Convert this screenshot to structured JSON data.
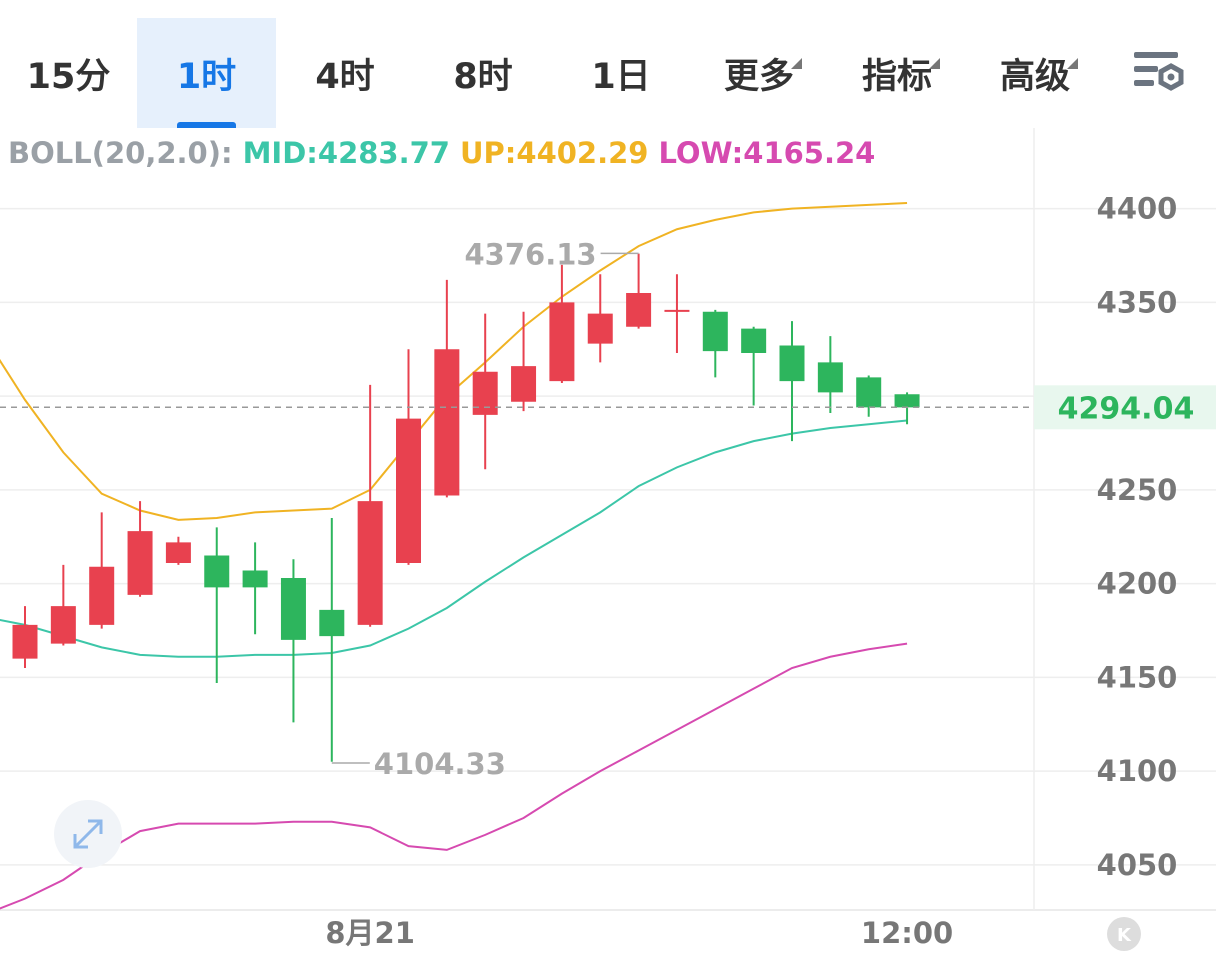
{
  "tabs": [
    {
      "label": "15分",
      "active": false,
      "dropdown": false
    },
    {
      "label": "1时",
      "active": true,
      "dropdown": false
    },
    {
      "label": "4时",
      "active": false,
      "dropdown": false
    },
    {
      "label": "8时",
      "active": false,
      "dropdown": false
    },
    {
      "label": "1日",
      "active": false,
      "dropdown": false
    },
    {
      "label": "更多",
      "active": false,
      "dropdown": true
    },
    {
      "label": "指标",
      "active": false,
      "dropdown": true
    },
    {
      "label": "高级",
      "active": false,
      "dropdown": true
    }
  ],
  "settings_icon": "chart-settings-icon",
  "indicator": {
    "name": "BOLL(20,2.0):",
    "mid": "MID:4283.77",
    "up": "UP:4402.29",
    "low": "LOW:4165.24"
  },
  "colors": {
    "up_candle": "#e8414f",
    "down_candle": "#2db55d",
    "mid_line": "#3cc6a8",
    "up_line": "#f0b323",
    "low_line": "#d64ab0",
    "accent": "#1677e6",
    "axis_text": "#777777"
  },
  "expand_icon": "expand-arrows-icon",
  "chart_data": {
    "type": "candlestick",
    "ylim": [
      4027,
      4443
    ],
    "y_ticks": [
      4050,
      4100,
      4150,
      4200,
      4250,
      4300,
      4350,
      4400
    ],
    "y_tick_labels": [
      "4050",
      "4100",
      "4150",
      "4200",
      "4250",
      "",
      "4350",
      "4400"
    ],
    "x_labels": [
      {
        "index": 9,
        "text": "8月21"
      },
      {
        "index": 23,
        "text": "12:00"
      }
    ],
    "current_price": "4294.04",
    "max_label": "4376.13",
    "min_label": "4104.33",
    "max_index": 16,
    "min_index": 8,
    "candles": [
      {
        "o": 4160,
        "h": 4188,
        "c": 4178,
        "l": 4155
      },
      {
        "o": 4168,
        "h": 4210,
        "c": 4188,
        "l": 4167
      },
      {
        "o": 4178,
        "h": 4238,
        "c": 4209,
        "l": 4176
      },
      {
        "o": 4194,
        "h": 4244,
        "c": 4228,
        "l": 4193
      },
      {
        "o": 4211,
        "h": 4225,
        "c": 4222,
        "l": 4210
      },
      {
        "o": 4215,
        "h": 4230,
        "c": 4198,
        "l": 4147
      },
      {
        "o": 4207,
        "h": 4222,
        "c": 4198,
        "l": 4173
      },
      {
        "o": 4203,
        "h": 4213,
        "c": 4170,
        "l": 4126
      },
      {
        "o": 4186,
        "h": 4235,
        "c": 4172,
        "l": 4105
      },
      {
        "o": 4178,
        "h": 4306,
        "c": 4244,
        "l": 4177
      },
      {
        "o": 4211,
        "h": 4325,
        "c": 4288,
        "l": 4210
      },
      {
        "o": 4247,
        "h": 4362,
        "c": 4325,
        "l": 4246
      },
      {
        "o": 4290,
        "h": 4344,
        "c": 4313,
        "l": 4261
      },
      {
        "o": 4297,
        "h": 4345,
        "c": 4316,
        "l": 4292
      },
      {
        "o": 4308,
        "h": 4370,
        "c": 4350,
        "l": 4307
      },
      {
        "o": 4328,
        "h": 4365,
        "c": 4344,
        "l": 4318
      },
      {
        "o": 4337,
        "h": 4376,
        "c": 4355,
        "l": 4336
      },
      {
        "o": 4345,
        "h": 4365,
        "c": 4346,
        "l": 4323
      },
      {
        "o": 4345,
        "h": 4346,
        "c": 4324,
        "l": 4310
      },
      {
        "o": 4336,
        "h": 4337,
        "c": 4323,
        "l": 4295
      },
      {
        "o": 4327,
        "h": 4340,
        "c": 4308,
        "l": 4276
      },
      {
        "o": 4318,
        "h": 4332,
        "c": 4302,
        "l": 4291
      },
      {
        "o": 4310,
        "h": 4311,
        "c": 4294,
        "l": 4289
      },
      {
        "o": 4301,
        "h": 4302,
        "c": 4294,
        "l": 4285
      }
    ],
    "boll_up": [
      4330,
      4298,
      4270,
      4248,
      4239,
      4234,
      4235,
      4238,
      4239,
      4240,
      4250,
      4275,
      4300,
      4318,
      4337,
      4353,
      4367,
      4380,
      4389,
      4394,
      4398,
      4400,
      4401,
      4402,
      4403
    ],
    "boll_mid": [
      4182,
      4178,
      4172,
      4166,
      4162,
      4161,
      4161,
      4162,
      4162,
      4163,
      4167,
      4176,
      4187,
      4201,
      4214,
      4226,
      4238,
      4252,
      4262,
      4270,
      4276,
      4280,
      4283,
      4285,
      4287
    ],
    "boll_low": [
      4024,
      4032,
      4042,
      4056,
      4068,
      4072,
      4072,
      4072,
      4073,
      4073,
      4070,
      4060,
      4058,
      4066,
      4075,
      4088,
      4100,
      4111,
      4122,
      4133,
      4144,
      4155,
      4161,
      4165,
      4168
    ]
  }
}
